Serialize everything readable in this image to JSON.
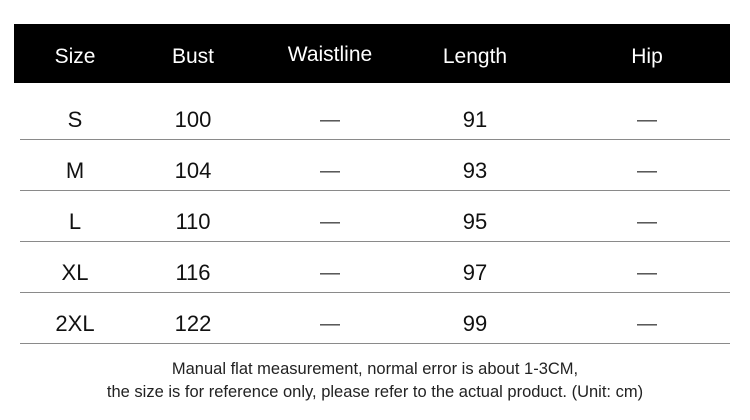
{
  "table": {
    "headers": [
      "Size",
      "Bust",
      "Waistline",
      "Length",
      "Hip"
    ],
    "rows": [
      [
        "S",
        "100",
        "—",
        "91",
        "—"
      ],
      [
        "M",
        "104",
        "—",
        "93",
        "—"
      ],
      [
        "L",
        "110",
        "—",
        "95",
        "—"
      ],
      [
        "XL",
        "116",
        "—",
        "97",
        "—"
      ],
      [
        "2XL",
        "122",
        "—",
        "99",
        "—"
      ]
    ]
  },
  "footer": {
    "line1": "Manual flat measurement, normal error is about 1-3CM,",
    "line2": "the size is for reference only, please refer to the actual product. (Unit: cm)"
  }
}
